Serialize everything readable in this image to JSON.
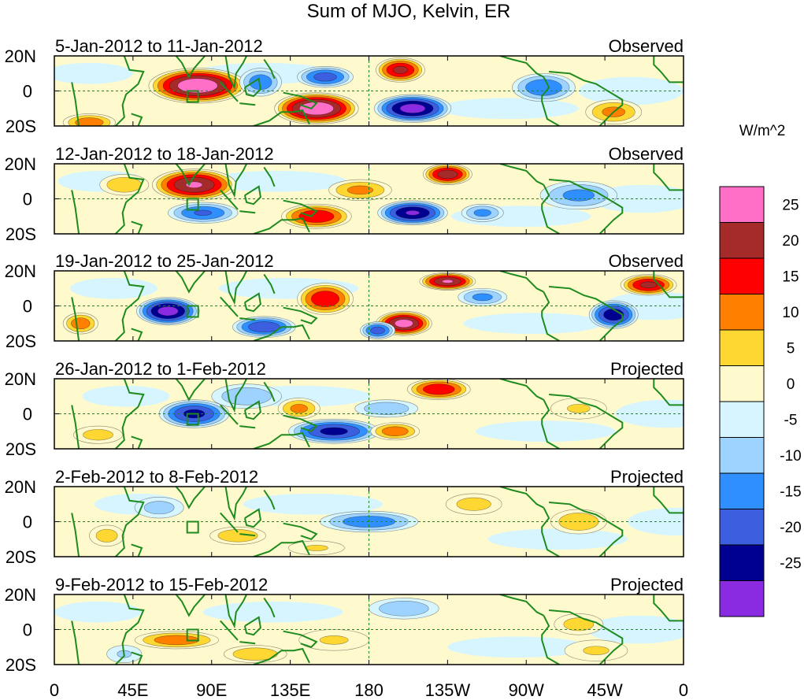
{
  "chart_data": {
    "type": "heatmap",
    "title": "Sum of MJO, Kelvin, ER",
    "xlabel": "",
    "ylabel": "",
    "x_ticks": [
      "0",
      "45E",
      "90E",
      "135E",
      "180",
      "135W",
      "90W",
      "45W",
      "0"
    ],
    "x_range": [
      0,
      360
    ],
    "y_ticks": [
      "20N",
      "0",
      "20S"
    ],
    "y_range": [
      -20,
      20
    ],
    "colorbar": {
      "units": "W/m^2",
      "levels": [
        25,
        20,
        15,
        10,
        5,
        0,
        -5,
        -10,
        -15,
        -20,
        -25
      ],
      "colors": [
        "#ff6ec7",
        "#a52a2a",
        "#ff0000",
        "#ff7f00",
        "#ffd733",
        "#fffacd",
        "#d6f5ff",
        "#9fd3ff",
        "#2f8fff",
        "#3c5fe0",
        "#000090",
        "#8a2be2"
      ]
    },
    "panels": [
      {
        "date_range": "5-Jan-2012 to 11-Jan-2012",
        "status": "Observed",
        "blobs": [
          {
            "lon": 82,
            "lat": 3,
            "rx": 28,
            "ry": 10,
            "value": 30
          },
          {
            "lon": 150,
            "lat": -10,
            "rx": 24,
            "ry": 9,
            "value": 30
          },
          {
            "lon": 198,
            "lat": 12,
            "rx": 14,
            "ry": 7,
            "value": 22
          },
          {
            "lon": 205,
            "lat": -10,
            "rx": 22,
            "ry": 8,
            "value": -28
          },
          {
            "lon": 155,
            "lat": 8,
            "rx": 16,
            "ry": 6,
            "value": -18
          },
          {
            "lon": 20,
            "lat": -18,
            "rx": 15,
            "ry": 5,
            "value": 14
          },
          {
            "lon": 280,
            "lat": 2,
            "rx": 18,
            "ry": 8,
            "value": -15
          },
          {
            "lon": 320,
            "lat": -12,
            "rx": 16,
            "ry": 7,
            "value": 12
          },
          {
            "lon": 118,
            "lat": 5,
            "rx": 12,
            "ry": 8,
            "value": -14
          }
        ]
      },
      {
        "date_range": "12-Jan-2012 to 18-Jan-2012",
        "status": "Observed",
        "blobs": [
          {
            "lon": 80,
            "lat": 8,
            "rx": 24,
            "ry": 9,
            "value": 26
          },
          {
            "lon": 225,
            "lat": 14,
            "rx": 14,
            "ry": 6,
            "value": 24
          },
          {
            "lon": 205,
            "lat": -8,
            "rx": 20,
            "ry": 7,
            "value": -26
          },
          {
            "lon": 150,
            "lat": -10,
            "rx": 20,
            "ry": 7,
            "value": 20
          },
          {
            "lon": 85,
            "lat": -8,
            "rx": 20,
            "ry": 6,
            "value": -16
          },
          {
            "lon": 300,
            "lat": 2,
            "rx": 22,
            "ry": 8,
            "value": -12
          },
          {
            "lon": 175,
            "lat": 5,
            "rx": 18,
            "ry": 6,
            "value": 12
          },
          {
            "lon": 245,
            "lat": -8,
            "rx": 12,
            "ry": 5,
            "value": -12
          },
          {
            "lon": 40,
            "lat": 8,
            "rx": 14,
            "ry": 6,
            "value": 10
          }
        ]
      },
      {
        "date_range": "19-Jan-2012 to 25-Jan-2012",
        "status": "Observed",
        "blobs": [
          {
            "lon": 65,
            "lat": -3,
            "rx": 18,
            "ry": 8,
            "value": -28
          },
          {
            "lon": 320,
            "lat": -5,
            "rx": 14,
            "ry": 8,
            "value": -24
          },
          {
            "lon": 200,
            "lat": -10,
            "rx": 16,
            "ry": 7,
            "value": 28
          },
          {
            "lon": 225,
            "lat": 14,
            "rx": 16,
            "ry": 5,
            "value": 26
          },
          {
            "lon": 340,
            "lat": 12,
            "rx": 16,
            "ry": 6,
            "value": 22
          },
          {
            "lon": 155,
            "lat": 4,
            "rx": 16,
            "ry": 9,
            "value": 20
          },
          {
            "lon": 120,
            "lat": -12,
            "rx": 18,
            "ry": 6,
            "value": -20
          },
          {
            "lon": 185,
            "lat": -14,
            "rx": 10,
            "ry": 5,
            "value": -18
          },
          {
            "lon": 15,
            "lat": -10,
            "rx": 10,
            "ry": 6,
            "value": 14
          },
          {
            "lon": 245,
            "lat": 5,
            "rx": 14,
            "ry": 5,
            "value": -12
          }
        ]
      },
      {
        "date_range": "26-Jan-2012 to 1-Feb-2012",
        "status": "Projected",
        "blobs": [
          {
            "lon": 80,
            "lat": 0,
            "rx": 20,
            "ry": 8,
            "value": -22
          },
          {
            "lon": 160,
            "lat": -10,
            "rx": 26,
            "ry": 7,
            "value": -22
          },
          {
            "lon": 220,
            "lat": 14,
            "rx": 18,
            "ry": 6,
            "value": 20
          },
          {
            "lon": 195,
            "lat": -10,
            "rx": 14,
            "ry": 5,
            "value": 14
          },
          {
            "lon": 140,
            "lat": 3,
            "rx": 12,
            "ry": 6,
            "value": 12
          },
          {
            "lon": 190,
            "lat": 3,
            "rx": 18,
            "ry": 5,
            "value": -10
          },
          {
            "lon": 110,
            "lat": 10,
            "rx": 20,
            "ry": 7,
            "value": -10
          },
          {
            "lon": 25,
            "lat": -12,
            "rx": 14,
            "ry": 5,
            "value": 8
          },
          {
            "lon": 300,
            "lat": 3,
            "rx": 16,
            "ry": 6,
            "value": 6
          }
        ]
      },
      {
        "date_range": "2-Feb-2012 to 8-Feb-2012",
        "status": "Projected",
        "blobs": [
          {
            "lon": 180,
            "lat": 0,
            "rx": 28,
            "ry": 6,
            "value": -14
          },
          {
            "lon": 300,
            "lat": 0,
            "rx": 16,
            "ry": 7,
            "value": 10
          },
          {
            "lon": 240,
            "lat": 10,
            "rx": 16,
            "ry": 6,
            "value": 8
          },
          {
            "lon": 105,
            "lat": -8,
            "rx": 16,
            "ry": 5,
            "value": 10
          },
          {
            "lon": 60,
            "lat": 8,
            "rx": 14,
            "ry": 6,
            "value": -8
          },
          {
            "lon": 30,
            "lat": -8,
            "rx": 10,
            "ry": 6,
            "value": 8
          },
          {
            "lon": 150,
            "lat": -15,
            "rx": 16,
            "ry": 4,
            "value": 6
          }
        ]
      },
      {
        "date_range": "9-Feb-2012 to 15-Feb-2012",
        "status": "Projected",
        "blobs": [
          {
            "lon": 70,
            "lat": -6,
            "rx": 24,
            "ry": 5,
            "value": 14
          },
          {
            "lon": 115,
            "lat": -14,
            "rx": 18,
            "ry": 5,
            "value": 10
          },
          {
            "lon": 200,
            "lat": 12,
            "rx": 20,
            "ry": 6,
            "value": -10
          },
          {
            "lon": 300,
            "lat": 3,
            "rx": 14,
            "ry": 6,
            "value": 8
          },
          {
            "lon": 310,
            "lat": -12,
            "rx": 18,
            "ry": 6,
            "value": 6
          },
          {
            "lon": 160,
            "lat": -6,
            "rx": 20,
            "ry": 6,
            "value": 6
          },
          {
            "lon": 40,
            "lat": -14,
            "rx": 10,
            "ry": 5,
            "value": -6
          }
        ]
      }
    ]
  }
}
